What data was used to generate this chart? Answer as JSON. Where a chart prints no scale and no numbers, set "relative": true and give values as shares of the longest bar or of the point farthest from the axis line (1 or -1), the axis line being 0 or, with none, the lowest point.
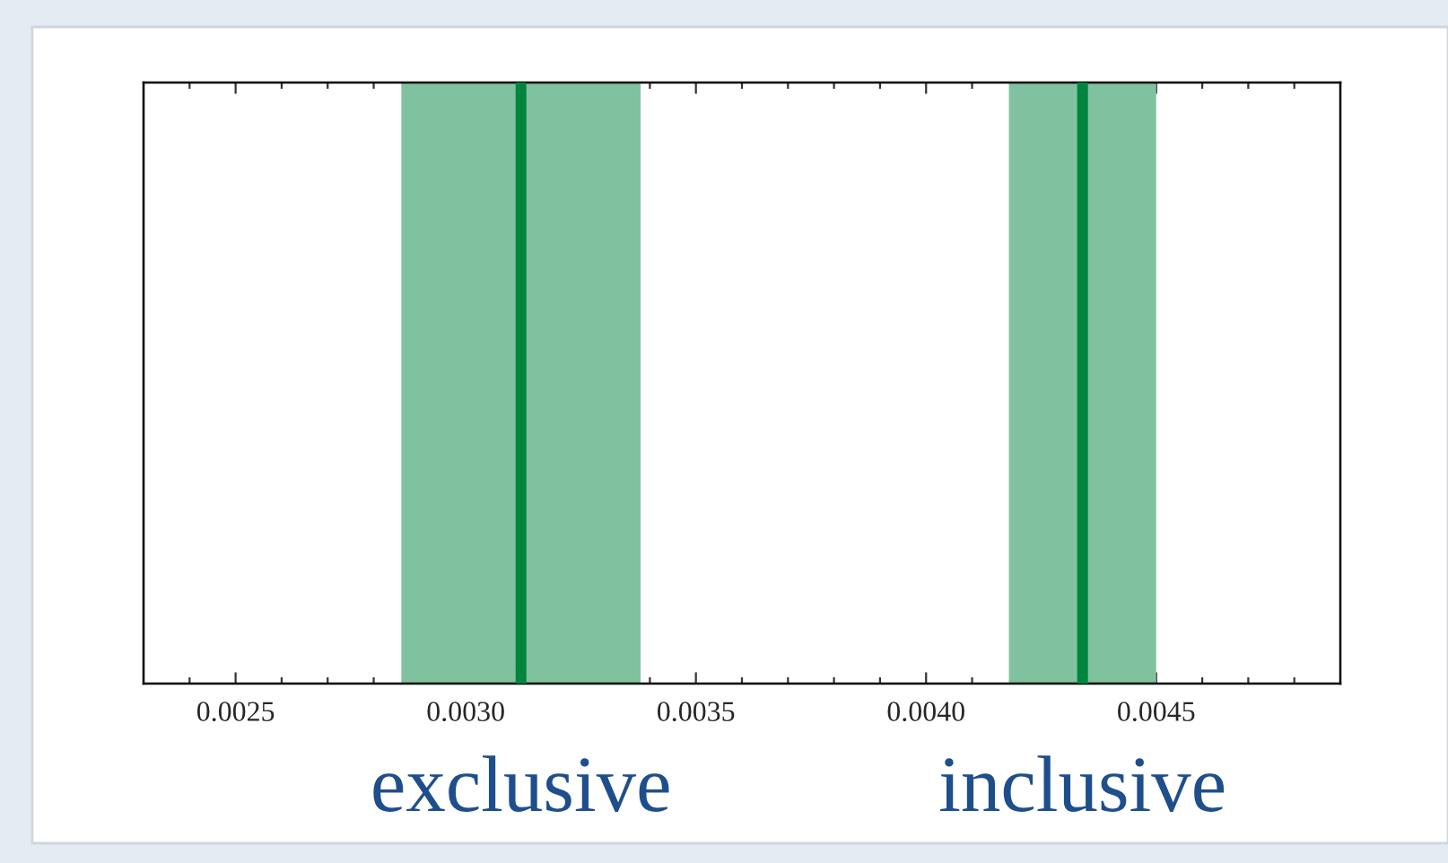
{
  "chart_data": {
    "type": "bar",
    "relative": true,
    "xlim": [
      0.0023,
      0.0049
    ],
    "xticks": [
      {
        "value": 0.0024,
        "label": null
      },
      {
        "value": 0.0025,
        "label": "0.0025"
      },
      {
        "value": 0.0026,
        "label": null
      },
      {
        "value": 0.0027,
        "label": null
      },
      {
        "value": 0.0028,
        "label": null
      },
      {
        "value": 0.0029,
        "label": null
      },
      {
        "value": 0.003,
        "label": "0.0030"
      },
      {
        "value": 0.0031,
        "label": null
      },
      {
        "value": 0.0032,
        "label": null
      },
      {
        "value": 0.0033,
        "label": null
      },
      {
        "value": 0.0034,
        "label": null
      },
      {
        "value": 0.0035,
        "label": "0.0035"
      },
      {
        "value": 0.0036,
        "label": null
      },
      {
        "value": 0.0037,
        "label": null
      },
      {
        "value": 0.0038,
        "label": null
      },
      {
        "value": 0.0039,
        "label": null
      },
      {
        "value": 0.004,
        "label": "0.0040"
      },
      {
        "value": 0.0041,
        "label": null
      },
      {
        "value": 0.0042,
        "label": null
      },
      {
        "value": 0.0043,
        "label": null
      },
      {
        "value": 0.0044,
        "label": null
      },
      {
        "value": 0.0045,
        "label": "0.0045"
      },
      {
        "value": 0.0046,
        "label": null
      },
      {
        "value": 0.0047,
        "label": null
      },
      {
        "value": 0.0048,
        "label": null
      }
    ],
    "tick_labels": "x",
    "grid": false,
    "series": [
      {
        "name": "exclusive",
        "color": "#00853e",
        "x": [
          0.00312
        ],
        "values": [
          1
        ]
      },
      {
        "name": "inclusive",
        "color": "#00853e",
        "x": [
          0.00434
        ],
        "values": [
          1
        ]
      }
    ],
    "bands": [
      {
        "axis": "x",
        "from": 0.00286,
        "to": 0.00338,
        "color": "#80c29f"
      },
      {
        "axis": "x",
        "from": 0.00418,
        "to": 0.0045,
        "color": "#80c29f"
      }
    ]
  }
}
